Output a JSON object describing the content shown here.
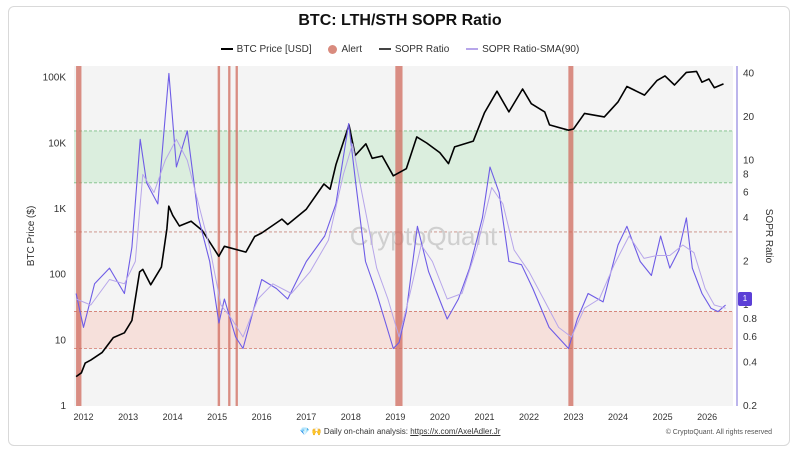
{
  "chart_data": {
    "type": "line",
    "title": "BTC: LTH/STH SOPR Ratio",
    "legend": [
      {
        "name": "BTC Price [USD]",
        "style": "line",
        "color": "#000000"
      },
      {
        "name": "Alert",
        "style": "dot",
        "color": "#d98b7e"
      },
      {
        "name": "SOPR Ratio",
        "style": "line",
        "color": "#444444"
      },
      {
        "name": "SOPR Ratio-SMA(90)",
        "style": "line",
        "color": "#b7a6ea"
      }
    ],
    "legend_position": "top-center",
    "x_axis": {
      "type": "date",
      "ticks": [
        "2012",
        "2013",
        "2014",
        "2015",
        "2016",
        "2017",
        "2018",
        "2019",
        "2020",
        "2021",
        "2022",
        "2023",
        "2024",
        "2025",
        "2026"
      ],
      "range": [
        "2011-10-15",
        "2026-08-01"
      ]
    },
    "y_left": {
      "label": "BTC Price ($)",
      "scale": "log",
      "range": [
        1,
        150000
      ],
      "ticks": [
        "1",
        "10",
        "100",
        "1K",
        "10K",
        "100K"
      ],
      "tick_values": [
        1,
        10,
        100,
        1000,
        10000,
        100000
      ]
    },
    "y_right": {
      "label": "SOPR Ratio",
      "scale": "log",
      "range": [
        0.2,
        45
      ],
      "ticks": [
        "0.2",
        "0.4",
        "0.6",
        "0.8",
        "1",
        "2",
        "4",
        "6",
        "8",
        "10",
        "20",
        "40"
      ],
      "tick_values": [
        0.2,
        0.4,
        0.6,
        0.8,
        1,
        2,
        4,
        6,
        8,
        10,
        20,
        40
      ]
    },
    "current_value_tag": "1",
    "bands": [
      {
        "name": "upper",
        "from": 7,
        "to": 16,
        "color": "#d6ecd9"
      },
      {
        "name": "lower",
        "from": 0.5,
        "to": 0.9,
        "color": "#f6dcd6"
      }
    ],
    "reference_lines": [
      16,
      7,
      3.2,
      0.9,
      0.5
    ],
    "alert_periods": [
      [
        "2011-11-01",
        "2011-12-15"
      ],
      [
        "2015-01-05",
        "2015-01-25"
      ],
      [
        "2015-04-01",
        "2015-04-20"
      ],
      [
        "2015-06-01",
        "2015-06-20"
      ],
      [
        "2019-01-01",
        "2019-03-01"
      ],
      [
        "2022-11-20",
        "2022-12-31"
      ]
    ],
    "series": [
      {
        "name": "BTC Price [USD]",
        "axis": "left",
        "points": [
          [
            "2011-11-01",
            2.8
          ],
          [
            "2011-12-15",
            3.2
          ],
          [
            "2012-01-15",
            4.5
          ],
          [
            "2012-03-01",
            5
          ],
          [
            "2012-06-01",
            6.5
          ],
          [
            "2012-09-01",
            11
          ],
          [
            "2012-12-01",
            13
          ],
          [
            "2013-02-01",
            20
          ],
          [
            "2013-04-05",
            110
          ],
          [
            "2013-05-01",
            120
          ],
          [
            "2013-07-05",
            70
          ],
          [
            "2013-10-01",
            130
          ],
          [
            "2013-11-15",
            500
          ],
          [
            "2013-11-30",
            1100
          ],
          [
            "2014-01-01",
            800
          ],
          [
            "2014-02-25",
            550
          ],
          [
            "2014-06-01",
            650
          ],
          [
            "2014-09-01",
            470
          ],
          [
            "2015-01-14",
            190
          ],
          [
            "2015-03-01",
            270
          ],
          [
            "2015-08-25",
            220
          ],
          [
            "2015-11-05",
            380
          ],
          [
            "2016-01-01",
            430
          ],
          [
            "2016-06-15",
            700
          ],
          [
            "2016-08-01",
            580
          ],
          [
            "2017-01-01",
            990
          ],
          [
            "2017-05-25",
            2400
          ],
          [
            "2017-07-15",
            2000
          ],
          [
            "2017-09-01",
            4700
          ],
          [
            "2017-12-17",
            19000
          ],
          [
            "2018-02-06",
            6500
          ],
          [
            "2018-05-05",
            9800
          ],
          [
            "2018-06-25",
            5900
          ],
          [
            "2018-09-15",
            6400
          ],
          [
            "2018-12-15",
            3200
          ],
          [
            "2019-04-01",
            4100
          ],
          [
            "2019-06-26",
            12500
          ],
          [
            "2019-09-15",
            10100
          ],
          [
            "2020-01-01",
            7200
          ],
          [
            "2020-03-12",
            4900
          ],
          [
            "2020-05-01",
            8800
          ],
          [
            "2020-10-01",
            10800
          ],
          [
            "2020-12-31",
            29000
          ],
          [
            "2021-04-14",
            62000
          ],
          [
            "2021-07-20",
            30000
          ],
          [
            "2021-11-10",
            67000
          ],
          [
            "2022-01-20",
            40000
          ],
          [
            "2022-05-10",
            30000
          ],
          [
            "2022-06-18",
            19000
          ],
          [
            "2022-11-21",
            15800
          ],
          [
            "2023-01-01",
            16500
          ],
          [
            "2023-04-01",
            28500
          ],
          [
            "2023-09-11",
            25200
          ],
          [
            "2023-12-31",
            42300
          ],
          [
            "2024-03-14",
            73000
          ],
          [
            "2024-08-05",
            54000
          ],
          [
            "2024-11-15",
            90000
          ],
          [
            "2025-01-20",
            106000
          ],
          [
            "2025-04-08",
            77000
          ],
          [
            "2025-07-14",
            120000
          ],
          [
            "2025-10-06",
            124000
          ],
          [
            "2025-11-20",
            85000
          ],
          [
            "2026-01-15",
            95000
          ],
          [
            "2026-03-01",
            70000
          ],
          [
            "2026-05-15",
            80000
          ]
        ]
      },
      {
        "name": "SOPR Ratio",
        "axis": "right",
        "points": [
          [
            "2011-11-01",
            1.2
          ],
          [
            "2012-01-01",
            0.7
          ],
          [
            "2012-04-01",
            1.4
          ],
          [
            "2012-08-01",
            1.8
          ],
          [
            "2012-12-01",
            1.2
          ],
          [
            "2013-02-01",
            2.5
          ],
          [
            "2013-04-10",
            14
          ],
          [
            "2013-06-01",
            7
          ],
          [
            "2013-09-01",
            5
          ],
          [
            "2013-12-01",
            40
          ],
          [
            "2014-02-01",
            9
          ],
          [
            "2014-05-01",
            16
          ],
          [
            "2014-08-01",
            4
          ],
          [
            "2014-11-01",
            2
          ],
          [
            "2015-01-15",
            0.75
          ],
          [
            "2015-03-01",
            1.1
          ],
          [
            "2015-06-01",
            0.6
          ],
          [
            "2015-08-01",
            0.5
          ],
          [
            "2016-01-01",
            1.5
          ],
          [
            "2016-05-01",
            1.3
          ],
          [
            "2016-08-01",
            1.1
          ],
          [
            "2017-01-01",
            2
          ],
          [
            "2017-06-01",
            3
          ],
          [
            "2017-09-01",
            5
          ],
          [
            "2017-12-15",
            18
          ],
          [
            "2018-02-10",
            7
          ],
          [
            "2018-05-01",
            2
          ],
          [
            "2018-08-01",
            1.2
          ],
          [
            "2018-12-15",
            0.5
          ],
          [
            "2019-02-01",
            0.55
          ],
          [
            "2019-04-01",
            0.9
          ],
          [
            "2019-07-01",
            3.5
          ],
          [
            "2019-10-01",
            1.7
          ],
          [
            "2020-03-01",
            0.8
          ],
          [
            "2020-06-01",
            1.1
          ],
          [
            "2020-09-01",
            1.8
          ],
          [
            "2020-12-15",
            4
          ],
          [
            "2021-02-15",
            9
          ],
          [
            "2021-05-01",
            6
          ],
          [
            "2021-07-20",
            2
          ],
          [
            "2021-11-01",
            1.9
          ],
          [
            "2022-02-01",
            1.3
          ],
          [
            "2022-06-15",
            0.7
          ],
          [
            "2022-11-21",
            0.5
          ],
          [
            "2023-02-01",
            0.8
          ],
          [
            "2023-05-01",
            1.2
          ],
          [
            "2023-09-01",
            1.05
          ],
          [
            "2024-01-01",
            2.6
          ],
          [
            "2024-03-14",
            3.5
          ],
          [
            "2024-07-01",
            2
          ],
          [
            "2024-10-01",
            1.6
          ],
          [
            "2024-12-15",
            3
          ],
          [
            "2025-03-01",
            1.8
          ],
          [
            "2025-05-15",
            2.4
          ],
          [
            "2025-07-15",
            4
          ],
          [
            "2025-09-01",
            1.8
          ],
          [
            "2025-11-20",
            1.2
          ],
          [
            "2026-02-01",
            0.95
          ],
          [
            "2026-04-01",
            0.9
          ],
          [
            "2026-06-01",
            1
          ]
        ]
      },
      {
        "name": "SOPR Ratio-SMA(90)",
        "axis": "right",
        "points": [
          [
            "2011-11-01",
            1.1
          ],
          [
            "2012-03-01",
            1.0
          ],
          [
            "2012-08-01",
            1.5
          ],
          [
            "2012-12-01",
            1.4
          ],
          [
            "2013-03-01",
            2
          ],
          [
            "2013-05-01",
            8
          ],
          [
            "2013-08-01",
            6
          ],
          [
            "2013-11-01",
            10
          ],
          [
            "2014-02-01",
            14
          ],
          [
            "2014-05-01",
            10
          ],
          [
            "2014-08-01",
            5
          ],
          [
            "2014-11-01",
            2.5
          ],
          [
            "2015-02-01",
            1
          ],
          [
            "2015-05-01",
            0.8
          ],
          [
            "2015-08-01",
            0.6
          ],
          [
            "2015-12-01",
            1.1
          ],
          [
            "2016-04-01",
            1.4
          ],
          [
            "2016-09-01",
            1.2
          ],
          [
            "2017-02-01",
            1.7
          ],
          [
            "2017-07-01",
            2.8
          ],
          [
            "2017-11-01",
            8
          ],
          [
            "2018-01-15",
            13
          ],
          [
            "2018-04-01",
            6
          ],
          [
            "2018-08-01",
            1.8
          ],
          [
            "2018-11-01",
            1.1
          ],
          [
            "2019-02-01",
            0.6
          ],
          [
            "2019-05-01",
            1.2
          ],
          [
            "2019-08-01",
            2.6
          ],
          [
            "2019-11-01",
            2
          ],
          [
            "2020-03-01",
            1.1
          ],
          [
            "2020-07-01",
            1.2
          ],
          [
            "2020-11-01",
            2.5
          ],
          [
            "2021-03-01",
            6.5
          ],
          [
            "2021-06-01",
            5
          ],
          [
            "2021-09-01",
            2.4
          ],
          [
            "2022-01-01",
            1.7
          ],
          [
            "2022-05-01",
            1.1
          ],
          [
            "2022-09-01",
            0.7
          ],
          [
            "2022-12-15",
            0.6
          ],
          [
            "2023-04-01",
            0.95
          ],
          [
            "2023-08-01",
            1.1
          ],
          [
            "2023-12-01",
            1.9
          ],
          [
            "2024-04-01",
            3
          ],
          [
            "2024-08-01",
            2.1
          ],
          [
            "2024-11-15",
            2.2
          ],
          [
            "2025-03-01",
            2.2
          ],
          [
            "2025-06-15",
            2.6
          ],
          [
            "2025-09-15",
            2.3
          ],
          [
            "2025-12-15",
            1.3
          ],
          [
            "2026-03-01",
            1
          ],
          [
            "2026-06-01",
            0.95
          ]
        ]
      }
    ]
  },
  "footer": {
    "emoji": "💎 🙌",
    "text": "Daily on-chain analysis:",
    "link": "https://x.com/AxelAdler.Jr",
    "copyright": "© CryptoQuant. All rights reserved"
  },
  "watermark": "CryptoQuant"
}
